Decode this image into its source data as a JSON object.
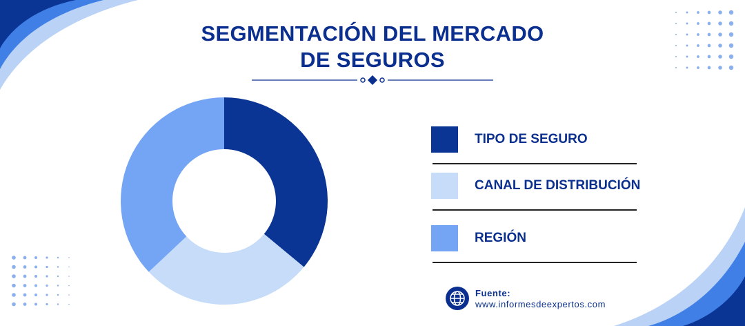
{
  "title": "SEGMENTACIÓN DEL MERCADO DE SEGUROS",
  "chart_data": {
    "type": "pie",
    "donut": true,
    "categories": [
      "TIPO DE SEGURO",
      "CANAL DE DISTRIBUCIÓN",
      "REGIÓN"
    ],
    "values": [
      36,
      27,
      37
    ],
    "colors": [
      "#0a3595",
      "#c6dcf8",
      "#74a5f4"
    ]
  },
  "source": {
    "label": "Fuente:",
    "url": "www.informesdeexpertos.com"
  }
}
